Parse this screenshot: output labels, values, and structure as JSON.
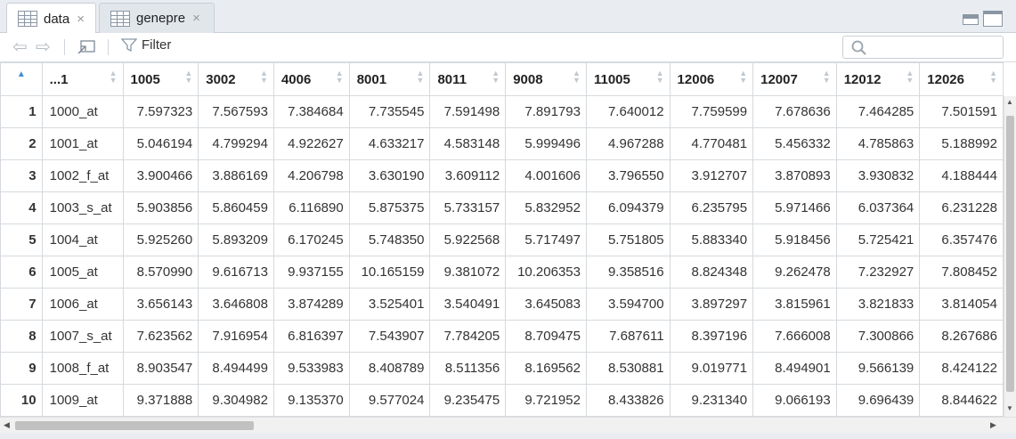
{
  "tabs": [
    {
      "label": "data",
      "close": "×"
    },
    {
      "label": "genepre",
      "close": "×"
    }
  ],
  "toolbar": {
    "filter_label": "Filter",
    "search_placeholder": ""
  },
  "table": {
    "row_header_sort_indicator": "▲",
    "columns": [
      "...1",
      "1005",
      "3002",
      "4006",
      "8001",
      "8011",
      "9008",
      "11005",
      "12006",
      "12007",
      "12012",
      "12026"
    ],
    "rows": [
      {
        "n": "1",
        "cells": [
          "1000_at",
          "7.597323",
          "7.567593",
          "7.384684",
          "7.735545",
          "7.591498",
          "7.891793",
          "7.640012",
          "7.759599",
          "7.678636",
          "7.464285",
          "7.501591"
        ]
      },
      {
        "n": "2",
        "cells": [
          "1001_at",
          "5.046194",
          "4.799294",
          "4.922627",
          "4.633217",
          "4.583148",
          "5.999496",
          "4.967288",
          "4.770481",
          "5.456332",
          "4.785863",
          "5.188992"
        ]
      },
      {
        "n": "3",
        "cells": [
          "1002_f_at",
          "3.900466",
          "3.886169",
          "4.206798",
          "3.630190",
          "3.609112",
          "4.001606",
          "3.796550",
          "3.912707",
          "3.870893",
          "3.930832",
          "4.188444"
        ]
      },
      {
        "n": "4",
        "cells": [
          "1003_s_at",
          "5.903856",
          "5.860459",
          "6.116890",
          "5.875375",
          "5.733157",
          "5.832952",
          "6.094379",
          "6.235795",
          "5.971466",
          "6.037364",
          "6.231228"
        ]
      },
      {
        "n": "5",
        "cells": [
          "1004_at",
          "5.925260",
          "5.893209",
          "6.170245",
          "5.748350",
          "5.922568",
          "5.717497",
          "5.751805",
          "5.883340",
          "5.918456",
          "5.725421",
          "6.357476"
        ]
      },
      {
        "n": "6",
        "cells": [
          "1005_at",
          "8.570990",
          "9.616713",
          "9.937155",
          "10.165159",
          "9.381072",
          "10.206353",
          "9.358516",
          "8.824348",
          "9.262478",
          "7.232927",
          "7.808452"
        ]
      },
      {
        "n": "7",
        "cells": [
          "1006_at",
          "3.656143",
          "3.646808",
          "3.874289",
          "3.525401",
          "3.540491",
          "3.645083",
          "3.594700",
          "3.897297",
          "3.815961",
          "3.821833",
          "3.814054"
        ]
      },
      {
        "n": "8",
        "cells": [
          "1007_s_at",
          "7.623562",
          "7.916954",
          "6.816397",
          "7.543907",
          "7.784205",
          "8.709475",
          "7.687611",
          "8.397196",
          "7.666008",
          "7.300866",
          "8.267686"
        ]
      },
      {
        "n": "9",
        "cells": [
          "1008_f_at",
          "8.903547",
          "8.494499",
          "9.533983",
          "8.408789",
          "8.511356",
          "8.169562",
          "8.530881",
          "9.019771",
          "8.494901",
          "9.566139",
          "8.424122"
        ]
      },
      {
        "n": "10",
        "cells": [
          "1009_at",
          "9.371888",
          "9.304982",
          "9.135370",
          "9.577024",
          "9.235475",
          "9.721952",
          "8.433826",
          "9.231340",
          "9.066193",
          "9.696439",
          "8.844622"
        ]
      }
    ]
  }
}
